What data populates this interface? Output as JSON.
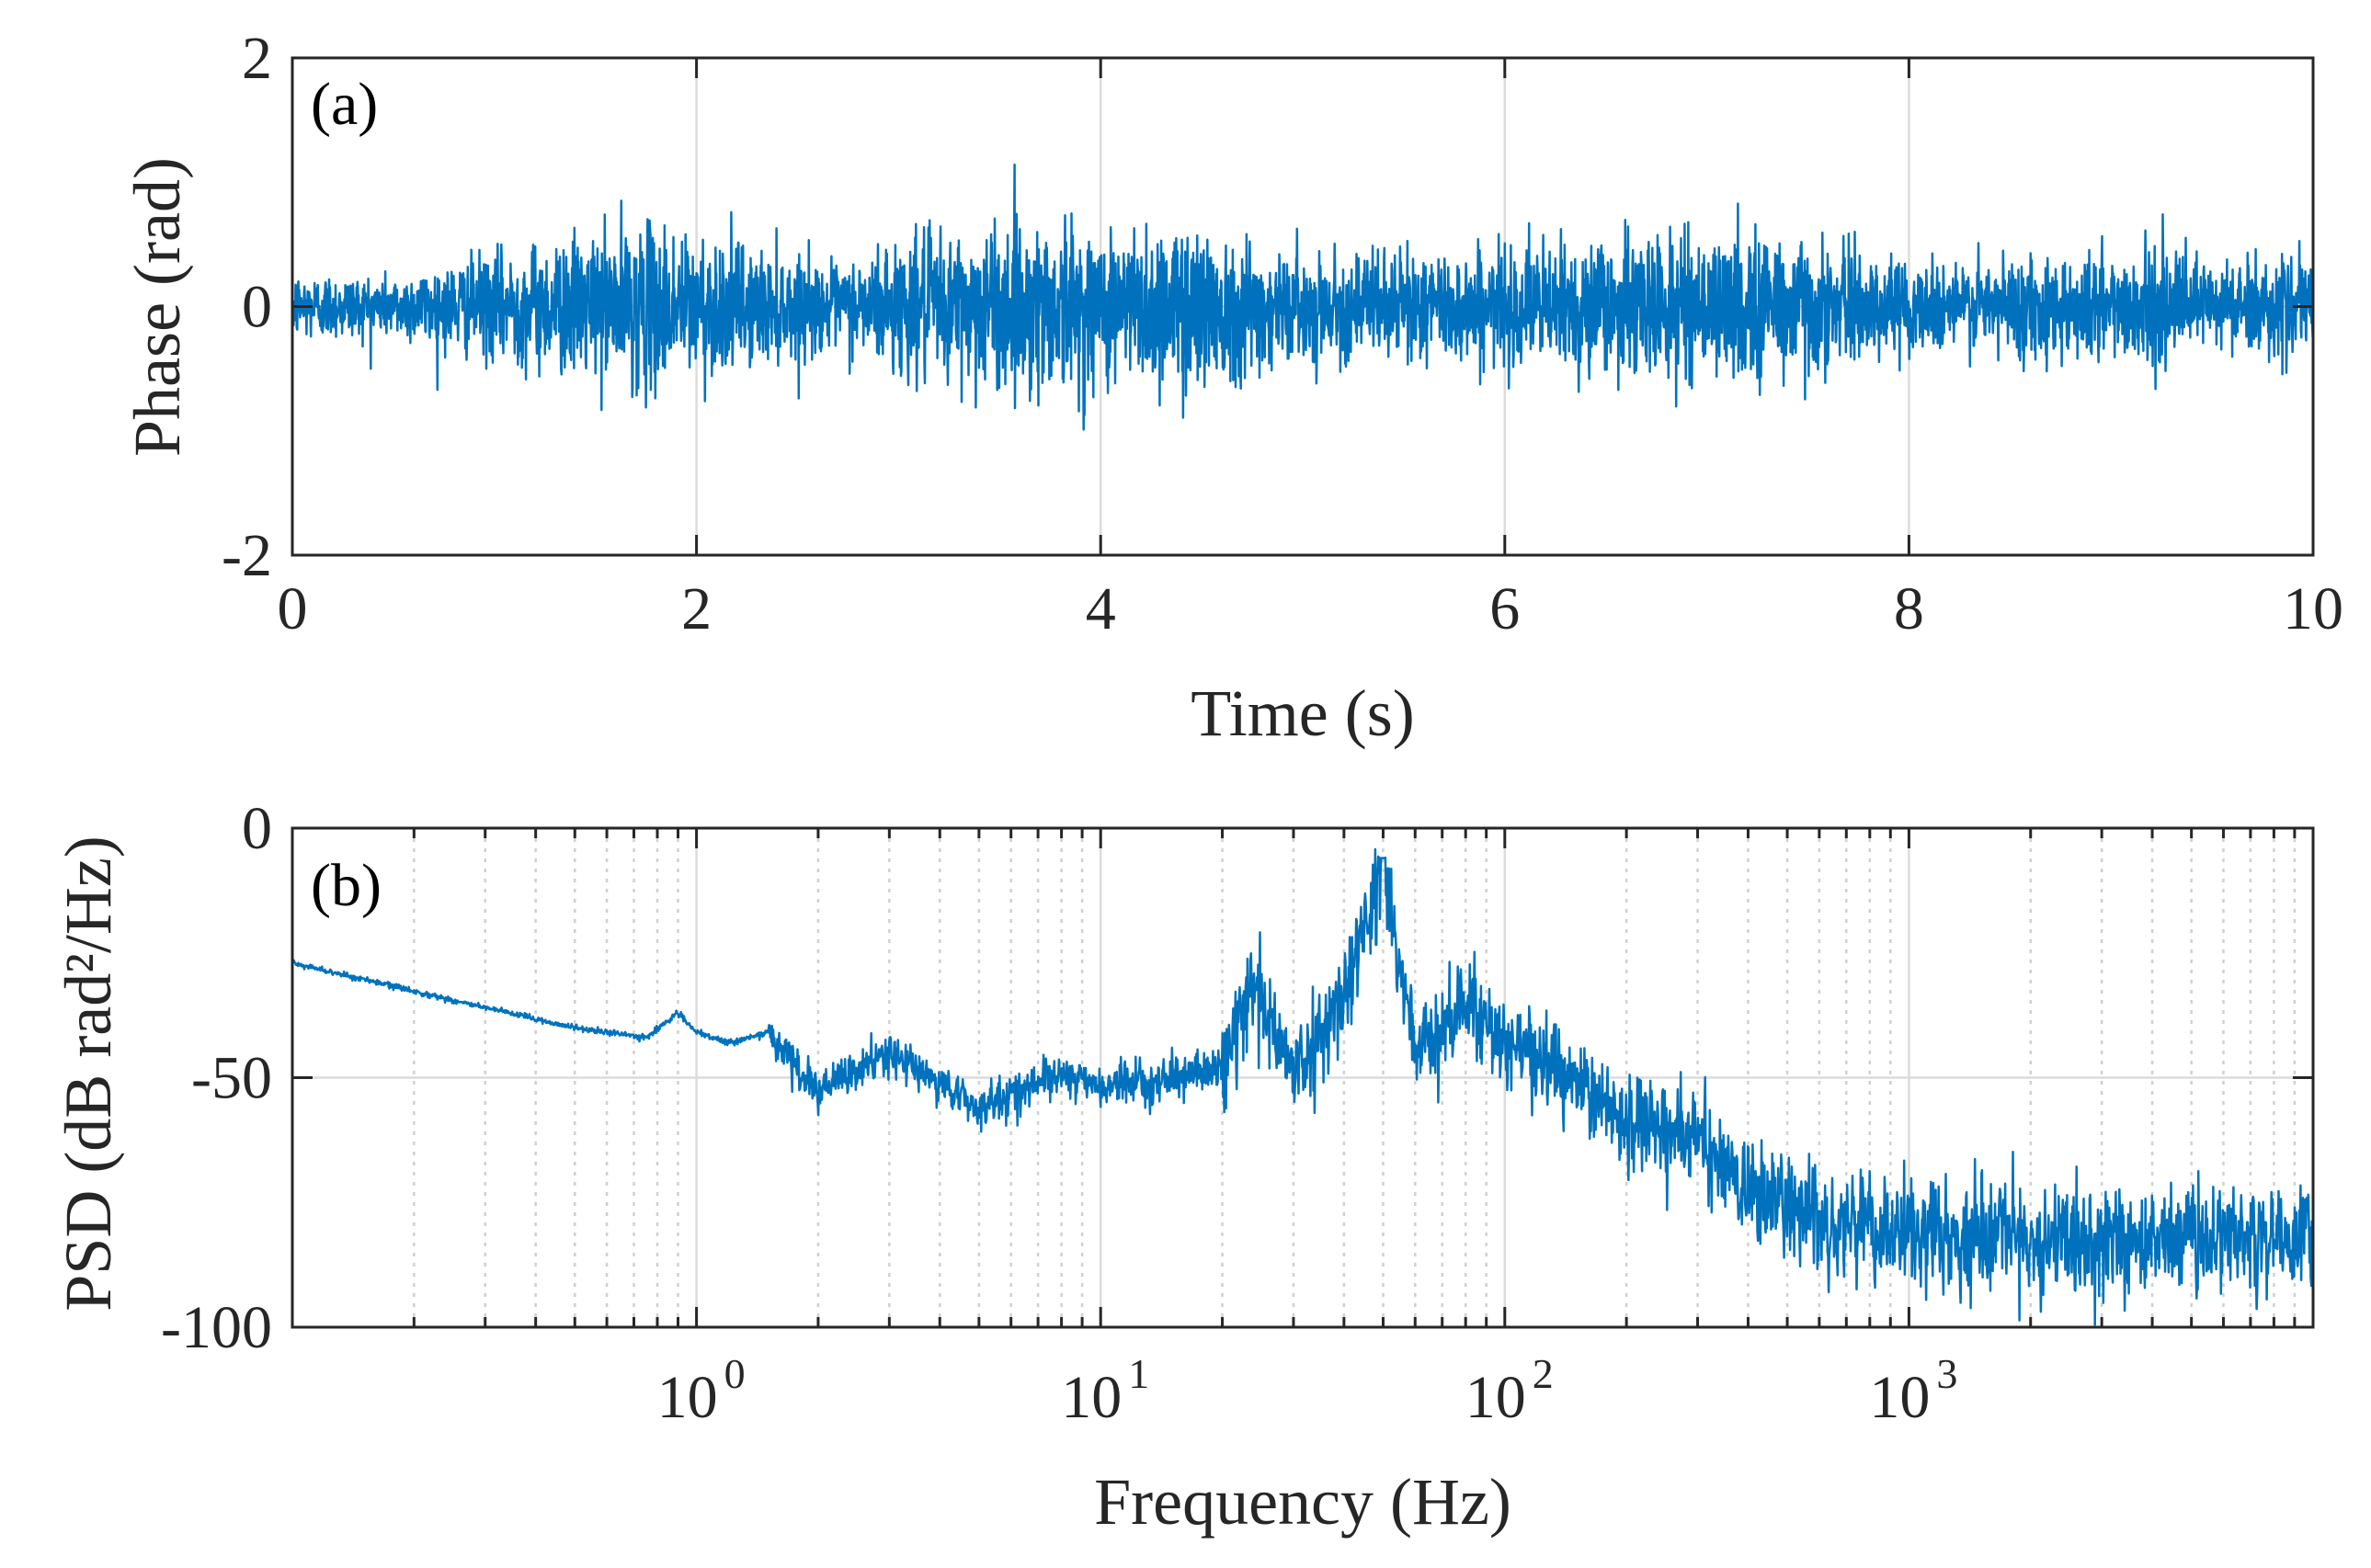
{
  "chart_data": [
    {
      "type": "line",
      "panel_label": "(a)",
      "xlabel": "Time (s)",
      "ylabel": "Phase (rad)",
      "xlim": [
        0,
        10
      ],
      "ylim": [
        -2,
        2
      ],
      "xticks": [
        0,
        2,
        4,
        6,
        8,
        10
      ],
      "xtick_labels": [
        "0",
        "2",
        "4",
        "6",
        "8",
        "10"
      ],
      "yticks": [
        -2,
        0,
        2
      ],
      "ytick_labels": [
        "-2",
        "0",
        "2"
      ],
      "grid": "on",
      "color": "#0072bd",
      "series": [
        {
          "name": "phase",
          "description_points": {
            "t": [
              0,
              0.5,
              1.0,
              1.5,
              1.75,
              2.0,
              2.4,
              2.7,
              3.0,
              3.5,
              3.7,
              4.0,
              4.5,
              4.9,
              5.0,
              5.5,
              6.0,
              6.5,
              7.0,
              7.4,
              7.6,
              8.0,
              8.5,
              9.0,
              9.5,
              10.0
            ],
            "envelope": [
              0.35,
              0.32,
              0.55,
              0.75,
              0.85,
              0.75,
              0.55,
              0.42,
              0.7,
              0.85,
              0.92,
              0.8,
              0.9,
              0.55,
              0.5,
              0.55,
              0.58,
              0.72,
              0.7,
              0.85,
              0.6,
              0.45,
              0.5,
              0.58,
              0.5,
              0.45
            ]
          },
          "peak_max": 1.35,
          "peak_min": -1.12
        }
      ]
    },
    {
      "type": "line",
      "panel_label": "(b)",
      "xlabel": "Frequency (Hz)",
      "ylabel": "PSD (dB rad²/Hz)",
      "xscale": "log",
      "xlim": [
        0.1,
        10000
      ],
      "ylim": [
        -100,
        0
      ],
      "xticks": [
        1,
        10,
        100,
        1000
      ],
      "xtick_labels": [
        {
          "base": "10",
          "exp": "0"
        },
        {
          "base": "10",
          "exp": "1"
        },
        {
          "base": "10",
          "exp": "2"
        },
        {
          "base": "10",
          "exp": "3"
        }
      ],
      "yticks": [
        -100,
        -50,
        0
      ],
      "ytick_labels": [
        "-100",
        "-50",
        "0"
      ],
      "grid": "on",
      "color": "#0072bd",
      "series": [
        {
          "name": "psd",
          "description_points": {
            "f": [
              0.1,
              0.3,
              0.5,
              0.75,
              0.9,
              1.0,
              1.2,
              1.5,
              2.0,
              3.0,
              5.0,
              8.0,
              10.0,
              15.0,
              20.0,
              24.0,
              30.0,
              40.0,
              50.0,
              60.0,
              80.0,
              100.0,
              200.0,
              300.0,
              400.0,
              600.0,
              1000.0,
              2000.0,
              5000.0,
              10000.0
            ],
            "psd_db": [
              -27,
              -36,
              -40,
              -42,
              -37,
              -41,
              -43,
              -41,
              -53,
              -45,
              -56,
              -49,
              -52,
              -50,
              -48,
              -30,
              -50,
              -33,
              -8,
              -45,
              -35,
              -42,
              -58,
              -62,
              -73,
              -78,
              -82,
              -83,
              -82,
              -82
            ]
          },
          "peak_freq_hz": 50,
          "peak_psd_db": -6
        }
      ]
    }
  ]
}
